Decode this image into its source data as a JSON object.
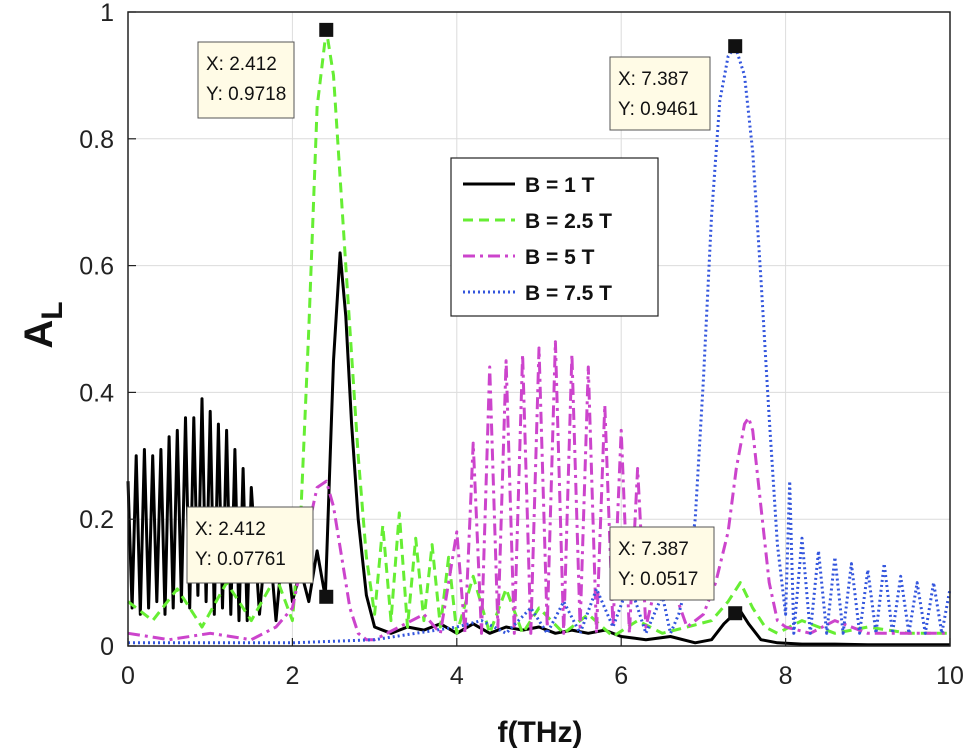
{
  "chart_data": {
    "type": "line",
    "xlabel": "f(THz)",
    "ylabel": "A",
    "ylabel_sub": "L",
    "xlim": [
      0,
      10
    ],
    "ylim": [
      0,
      1
    ],
    "xticks": [
      "0",
      "2",
      "4",
      "6",
      "8",
      "10"
    ],
    "yticks": [
      "0",
      "0.2",
      "0.4",
      "0.6",
      "0.8",
      "1"
    ],
    "grid": true,
    "legend_position": "center-top",
    "series": [
      {
        "name": "B = 1 T",
        "color": "#000000",
        "style": "solid",
        "x": [
          0,
          0.05,
          0.1,
          0.15,
          0.2,
          0.25,
          0.3,
          0.35,
          0.4,
          0.45,
          0.5,
          0.55,
          0.6,
          0.65,
          0.7,
          0.75,
          0.8,
          0.85,
          0.9,
          0.95,
          1.0,
          1.05,
          1.1,
          1.15,
          1.2,
          1.25,
          1.3,
          1.35,
          1.4,
          1.45,
          1.5,
          1.6,
          1.7,
          1.8,
          1.9,
          2.0,
          2.1,
          2.2,
          2.3,
          2.4,
          2.5,
          2.58,
          2.65,
          2.72,
          2.8,
          2.9,
          3.0,
          3.2,
          3.4,
          3.6,
          3.8,
          4.0,
          4.2,
          4.4,
          4.6,
          4.8,
          5.0,
          5.2,
          5.4,
          5.6,
          5.8,
          6.0,
          6.3,
          6.6,
          6.9,
          7.1,
          7.25,
          7.387,
          7.45,
          7.55,
          7.7,
          7.9,
          8.2,
          8.6,
          9.0,
          9.5,
          10.0
        ],
        "y": [
          0.26,
          0.06,
          0.3,
          0.05,
          0.31,
          0.06,
          0.3,
          0.07,
          0.31,
          0.05,
          0.33,
          0.06,
          0.34,
          0.07,
          0.36,
          0.06,
          0.36,
          0.08,
          0.39,
          0.07,
          0.37,
          0.05,
          0.35,
          0.06,
          0.34,
          0.05,
          0.31,
          0.04,
          0.28,
          0.04,
          0.25,
          0.05,
          0.2,
          0.04,
          0.18,
          0.07,
          0.12,
          0.07,
          0.15,
          0.077,
          0.45,
          0.62,
          0.52,
          0.35,
          0.2,
          0.08,
          0.03,
          0.02,
          0.03,
          0.025,
          0.035,
          0.02,
          0.035,
          0.02,
          0.03,
          0.025,
          0.03,
          0.02,
          0.025,
          0.02,
          0.025,
          0.015,
          0.01,
          0.015,
          0.005,
          0.01,
          0.035,
          0.052,
          0.055,
          0.035,
          0.01,
          0.005,
          0.003,
          0.003,
          0.002,
          0.002,
          0.002
        ]
      },
      {
        "name": "B = 2.5 T",
        "color": "#66ee33",
        "style": "dashed",
        "x": [
          0,
          0.3,
          0.6,
          0.9,
          1.2,
          1.5,
          1.8,
          2.0,
          2.1,
          2.2,
          2.3,
          2.412,
          2.5,
          2.6,
          2.7,
          2.8,
          2.9,
          3.0,
          3.1,
          3.2,
          3.3,
          3.4,
          3.5,
          3.6,
          3.7,
          3.8,
          3.9,
          4.0,
          4.2,
          4.4,
          4.6,
          4.8,
          5.0,
          5.3,
          5.6,
          5.9,
          6.2,
          6.5,
          6.8,
          7.1,
          7.3,
          7.45,
          7.6,
          7.75,
          7.9,
          8.2,
          8.6,
          9.0,
          9.5,
          10.0
        ],
        "y": [
          0.07,
          0.04,
          0.09,
          0.03,
          0.1,
          0.04,
          0.11,
          0.04,
          0.2,
          0.5,
          0.85,
          0.9718,
          0.9,
          0.7,
          0.5,
          0.3,
          0.14,
          0.05,
          0.19,
          0.04,
          0.21,
          0.03,
          0.17,
          0.04,
          0.16,
          0.03,
          0.14,
          0.02,
          0.11,
          0.02,
          0.09,
          0.02,
          0.06,
          0.02,
          0.05,
          0.015,
          0.04,
          0.02,
          0.03,
          0.04,
          0.07,
          0.1,
          0.06,
          0.03,
          0.02,
          0.04,
          0.02,
          0.03,
          0.02,
          0.02
        ]
      },
      {
        "name": "B = 5 T",
        "color": "#cc44cc",
        "style": "dashdot",
        "x": [
          0,
          0.5,
          1.0,
          1.5,
          1.8,
          2.0,
          2.1,
          2.2,
          2.3,
          2.412,
          2.5,
          2.6,
          2.7,
          2.8,
          2.9,
          3.0,
          3.3,
          3.6,
          3.8,
          4.0,
          4.1,
          4.2,
          4.3,
          4.4,
          4.5,
          4.6,
          4.7,
          4.8,
          4.9,
          5.0,
          5.1,
          5.2,
          5.3,
          5.4,
          5.5,
          5.6,
          5.7,
          5.8,
          5.9,
          6.0,
          6.1,
          6.2,
          6.3,
          6.5,
          6.8,
          7.0,
          7.15,
          7.3,
          7.4,
          7.5,
          7.55,
          7.6,
          7.7,
          7.8,
          7.9,
          8.0,
          8.3,
          8.6,
          9.0,
          9.5,
          10.0
        ],
        "y": [
          0.02,
          0.01,
          0.02,
          0.01,
          0.03,
          0.06,
          0.12,
          0.19,
          0.25,
          0.26,
          0.22,
          0.14,
          0.06,
          0.02,
          0.01,
          0.01,
          0.03,
          0.05,
          0.02,
          0.18,
          0.02,
          0.32,
          0.02,
          0.44,
          0.03,
          0.45,
          0.02,
          0.46,
          0.02,
          0.47,
          0.03,
          0.48,
          0.02,
          0.46,
          0.03,
          0.44,
          0.02,
          0.38,
          0.03,
          0.34,
          0.02,
          0.28,
          0.03,
          0.14,
          0.03,
          0.05,
          0.1,
          0.18,
          0.28,
          0.35,
          0.36,
          0.34,
          0.22,
          0.1,
          0.04,
          0.03,
          0.02,
          0.04,
          0.02,
          0.02,
          0.02
        ]
      },
      {
        "name": "B = 7.5 T",
        "color": "#3355dd",
        "style": "dotted",
        "x": [
          0,
          1.0,
          2.0,
          3.0,
          3.5,
          4.0,
          4.3,
          4.6,
          4.9,
          5.1,
          5.3,
          5.5,
          5.7,
          5.9,
          6.1,
          6.3,
          6.5,
          6.6,
          6.7,
          6.8,
          6.9,
          7.0,
          7.1,
          7.2,
          7.3,
          7.387,
          7.5,
          7.6,
          7.7,
          7.8,
          7.9,
          8.0,
          8.05,
          8.1,
          8.2,
          8.3,
          8.4,
          8.5,
          8.6,
          8.7,
          8.8,
          8.9,
          9.0,
          9.1,
          9.2,
          9.3,
          9.4,
          9.5,
          9.6,
          9.7,
          9.8,
          9.9,
          10.0
        ],
        "y": [
          0.005,
          0.005,
          0.005,
          0.01,
          0.02,
          0.03,
          0.04,
          0.02,
          0.06,
          0.02,
          0.07,
          0.02,
          0.09,
          0.03,
          0.1,
          0.02,
          0.08,
          0.02,
          0.05,
          0.1,
          0.2,
          0.42,
          0.68,
          0.86,
          0.93,
          0.9461,
          0.9,
          0.78,
          0.58,
          0.36,
          0.16,
          0.05,
          0.26,
          0.02,
          0.17,
          0.02,
          0.15,
          0.02,
          0.14,
          0.02,
          0.13,
          0.02,
          0.12,
          0.02,
          0.13,
          0.02,
          0.11,
          0.02,
          0.1,
          0.02,
          0.1,
          0.02,
          0.09
        ]
      }
    ],
    "datatips": [
      {
        "x": 2.412,
        "y": 0.9718,
        "label_x": "X: 2.412",
        "label_y": "Y: 0.9718"
      },
      {
        "x": 7.387,
        "y": 0.9461,
        "label_x": "X: 7.387",
        "label_y": "Y: 0.9461"
      },
      {
        "x": 2.412,
        "y": 0.07761,
        "label_x": "X: 2.412",
        "label_y": "Y: 0.07761"
      },
      {
        "x": 7.387,
        "y": 0.0517,
        "label_x": "X: 7.387",
        "label_y": "Y: 0.0517"
      }
    ]
  }
}
